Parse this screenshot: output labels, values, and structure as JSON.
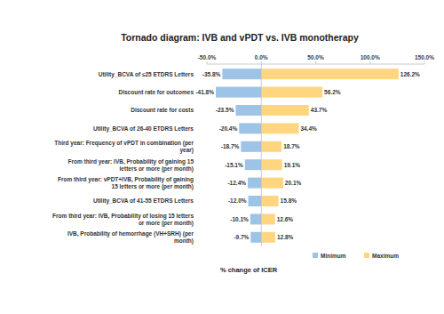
{
  "chart_data": {
    "type": "bar",
    "orientation": "horizontal",
    "title": "Tornado diagram: IVB and vPDT vs. IVB monotherapy",
    "xlabel": "% change of ICER",
    "categories": [
      "Utility_BCVA of ≤25 ETDRS Letters",
      "Discount rate for outcomes",
      "Discount rate for costs",
      "Utility_BCVA of 26-40 ETDRS Letters",
      "Third year: Frequency of vPDT in combination (per year)",
      "From third year: IVB, Probability of gaining 15 letters or more (per month)",
      "From third year: vPDT+IVB, Probability of gaining 15 letters or more (per month)",
      "Utility_BCVA of 41-55 ETDRS Letters",
      "From third year: IVB, Probability of losing 15 letters or more (per month)",
      "IVB, Probability of hemorrhage (VH+SRH) (per month)"
    ],
    "series": [
      {
        "name": "Minimum",
        "color": "#9dc3e6",
        "values": [
          -35.8,
          -41.8,
          -23.5,
          -20.4,
          -18.7,
          -15.1,
          -12.4,
          -12.0,
          -10.1,
          -9.7
        ],
        "value_labels": [
          "-35.8%",
          "-41.8%",
          "-23.5%",
          "-20.4%",
          "-18.7%",
          "-15.1%",
          "-12.4%",
          "-12.0%",
          "-10.1%",
          "-9.7%"
        ]
      },
      {
        "name": "Maximum",
        "color": "#ffd580",
        "values": [
          126.2,
          56.2,
          43.7,
          34.4,
          18.7,
          19.1,
          20.1,
          15.8,
          12.6,
          12.8
        ],
        "value_labels": [
          "126.2%",
          "56.2%",
          "43.7%",
          "34.4%",
          "18.7%",
          "19.1%",
          "20.1%",
          "15.8%",
          "12.6%",
          "12.8%"
        ]
      }
    ],
    "xlim": [
      -50,
      150
    ],
    "xticks": [
      {
        "value": -50,
        "label": "-50.0%"
      },
      {
        "value": 0,
        "label": "0.0%"
      },
      {
        "value": 50,
        "label": "50.0%"
      },
      {
        "value": 100,
        "label": "100.0%"
      },
      {
        "value": 150,
        "label": "150.0%"
      }
    ],
    "grid": false,
    "data_labels": true,
    "legend": "bottom-right"
  }
}
